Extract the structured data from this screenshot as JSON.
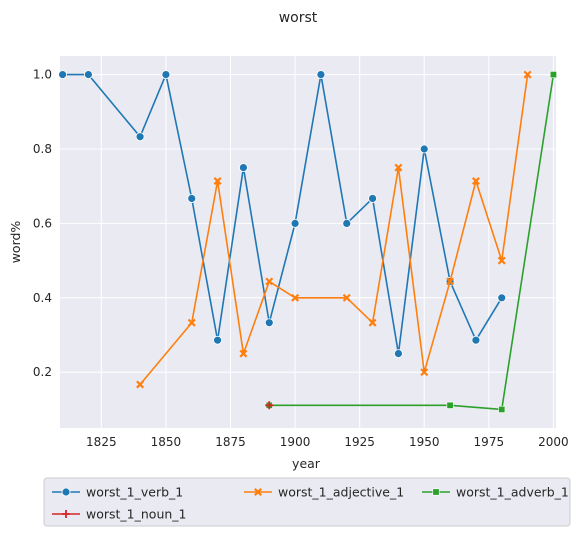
{
  "chart_data": {
    "type": "line",
    "title": "worst",
    "xlabel": "year",
    "ylabel": "word%",
    "xlim": [
      1809,
      2001
    ],
    "ylim": [
      0.05,
      1.05
    ],
    "xticks": [
      1825,
      1850,
      1875,
      1900,
      1925,
      1950,
      1975,
      2000
    ],
    "yticks": [
      0.2,
      0.4,
      0.6,
      0.8,
      1.0
    ],
    "xtick_labels": [
      "1825",
      "1850",
      "1875",
      "1900",
      "1925",
      "1950",
      "1975",
      "2000"
    ],
    "ytick_labels": [
      "0.2",
      "0.4",
      "0.6",
      "0.8",
      "1.0"
    ],
    "grid": true,
    "legend_position": "below",
    "series": [
      {
        "name": "worst_1_verb_1",
        "color": "#1f77b4",
        "marker": "circle",
        "x": [
          1810,
          1820,
          1840,
          1850,
          1860,
          1870,
          1880,
          1890,
          1900,
          1910,
          1920,
          1930,
          1940,
          1950,
          1960,
          1970,
          1980
        ],
        "y": [
          1.0,
          1.0,
          0.833,
          1.0,
          0.667,
          0.286,
          0.75,
          0.333,
          0.6,
          1.0,
          0.6,
          0.667,
          0.25,
          0.8,
          0.444,
          0.286,
          0.4
        ]
      },
      {
        "name": "worst_1_adjective_1",
        "color": "#ff7f0e",
        "marker": "x",
        "x": [
          1840,
          1860,
          1870,
          1880,
          1890,
          1900,
          1920,
          1930,
          1940,
          1950,
          1960,
          1970,
          1980,
          1990
        ],
        "y": [
          0.167,
          0.333,
          0.714,
          0.25,
          0.444,
          0.4,
          0.4,
          0.333,
          0.75,
          0.2,
          0.444,
          0.714,
          0.5,
          1.0
        ]
      },
      {
        "name": "worst_1_adverb_1",
        "color": "#2ca02c",
        "marker": "square",
        "x": [
          1890,
          1960,
          1980,
          2000
        ],
        "y": [
          0.111,
          0.111,
          0.1,
          1.0
        ]
      },
      {
        "name": "worst_1_noun_1",
        "color": "#d62728",
        "marker": "plus",
        "x": [
          1890
        ],
        "y": [
          0.111
        ]
      }
    ]
  }
}
